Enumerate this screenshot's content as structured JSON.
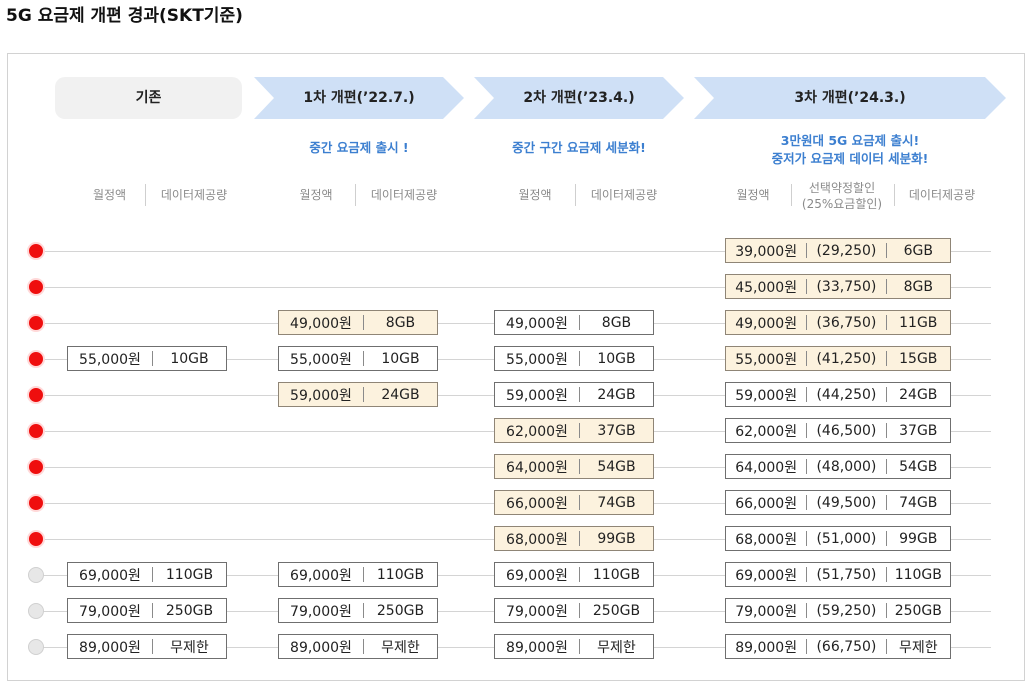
{
  "title": "5G 요금제 개편 경과(SKT기준)",
  "headers": {
    "base": "기존",
    "round1": "1차 개편(’22.7.)",
    "round2": "2차 개편(’23.4.)",
    "round3": "3차 개편(’24.3.)"
  },
  "subtitles": {
    "round1": "중간 요금제 출시 !",
    "round2": "중간 구간 요금제 세분화!",
    "round3_line1": "3만원대 5G 요금제 출시!",
    "round3_line2": "중저가 요금제 데이터 세분화!"
  },
  "column_headers": {
    "fee": "월정액",
    "data": "데이터제공량",
    "discount_line1": "선택약정할인",
    "discount_line2": "(25%요금할인)"
  },
  "colors": {
    "new_highlight": "#fcf2de",
    "arrow": "#cfe0f6",
    "new_dot": "#ef0e0e",
    "old_dot": "#e7e7e7",
    "sub_text": "#3c7fd0"
  },
  "rows": [
    {
      "dot": "red",
      "base": null,
      "r1": null,
      "r2": null,
      "r3": {
        "fee": "39,000원",
        "discount": "(29,250)",
        "data": "6GB",
        "new": true
      }
    },
    {
      "dot": "red",
      "base": null,
      "r1": null,
      "r2": null,
      "r3": {
        "fee": "45,000원",
        "discount": "(33,750)",
        "data": "8GB",
        "new": true
      }
    },
    {
      "dot": "red",
      "base": null,
      "r1": {
        "fee": "49,000원",
        "data": "8GB",
        "new": true
      },
      "r2": {
        "fee": "49,000원",
        "data": "8GB",
        "new": false
      },
      "r3": {
        "fee": "49,000원",
        "discount": "(36,750)",
        "data": "11GB",
        "new": true
      }
    },
    {
      "dot": "red",
      "base": {
        "fee": "55,000원",
        "data": "10GB",
        "new": false
      },
      "r1": {
        "fee": "55,000원",
        "data": "10GB",
        "new": false
      },
      "r2": {
        "fee": "55,000원",
        "data": "10GB",
        "new": false
      },
      "r3": {
        "fee": "55,000원",
        "discount": "(41,250)",
        "data": "15GB",
        "new": true
      }
    },
    {
      "dot": "red",
      "base": null,
      "r1": {
        "fee": "59,000원",
        "data": "24GB",
        "new": true
      },
      "r2": {
        "fee": "59,000원",
        "data": "24GB",
        "new": false
      },
      "r3": {
        "fee": "59,000원",
        "discount": "(44,250)",
        "data": "24GB",
        "new": false
      }
    },
    {
      "dot": "red",
      "base": null,
      "r1": null,
      "r2": {
        "fee": "62,000원",
        "data": "37GB",
        "new": true
      },
      "r3": {
        "fee": "62,000원",
        "discount": "(46,500)",
        "data": "37GB",
        "new": false
      }
    },
    {
      "dot": "red",
      "base": null,
      "r1": null,
      "r2": {
        "fee": "64,000원",
        "data": "54GB",
        "new": true
      },
      "r3": {
        "fee": "64,000원",
        "discount": "(48,000)",
        "data": "54GB",
        "new": false
      }
    },
    {
      "dot": "red",
      "base": null,
      "r1": null,
      "r2": {
        "fee": "66,000원",
        "data": "74GB",
        "new": true
      },
      "r3": {
        "fee": "66,000원",
        "discount": "(49,500)",
        "data": "74GB",
        "new": false
      }
    },
    {
      "dot": "red",
      "base": null,
      "r1": null,
      "r2": {
        "fee": "68,000원",
        "data": "99GB",
        "new": true
      },
      "r3": {
        "fee": "68,000원",
        "discount": "(51,000)",
        "data": "99GB",
        "new": false
      }
    },
    {
      "dot": "gray",
      "base": {
        "fee": "69,000원",
        "data": "110GB",
        "new": false
      },
      "r1": {
        "fee": "69,000원",
        "data": "110GB",
        "new": false
      },
      "r2": {
        "fee": "69,000원",
        "data": "110GB",
        "new": false
      },
      "r3": {
        "fee": "69,000원",
        "discount": "(51,750)",
        "data": "110GB",
        "new": false
      }
    },
    {
      "dot": "gray",
      "base": {
        "fee": "79,000원",
        "data": "250GB",
        "new": false
      },
      "r1": {
        "fee": "79,000원",
        "data": "250GB",
        "new": false
      },
      "r2": {
        "fee": "79,000원",
        "data": "250GB",
        "new": false
      },
      "r3": {
        "fee": "79,000원",
        "discount": "(59,250)",
        "data": "250GB",
        "new": false
      }
    },
    {
      "dot": "gray",
      "base": {
        "fee": "89,000원",
        "data": "무제한",
        "new": false
      },
      "r1": {
        "fee": "89,000원",
        "data": "무제한",
        "new": false
      },
      "r2": {
        "fee": "89,000원",
        "data": "무제한",
        "new": false
      },
      "r3": {
        "fee": "89,000원",
        "discount": "(66,750)",
        "data": "무제한",
        "new": false
      }
    }
  ]
}
